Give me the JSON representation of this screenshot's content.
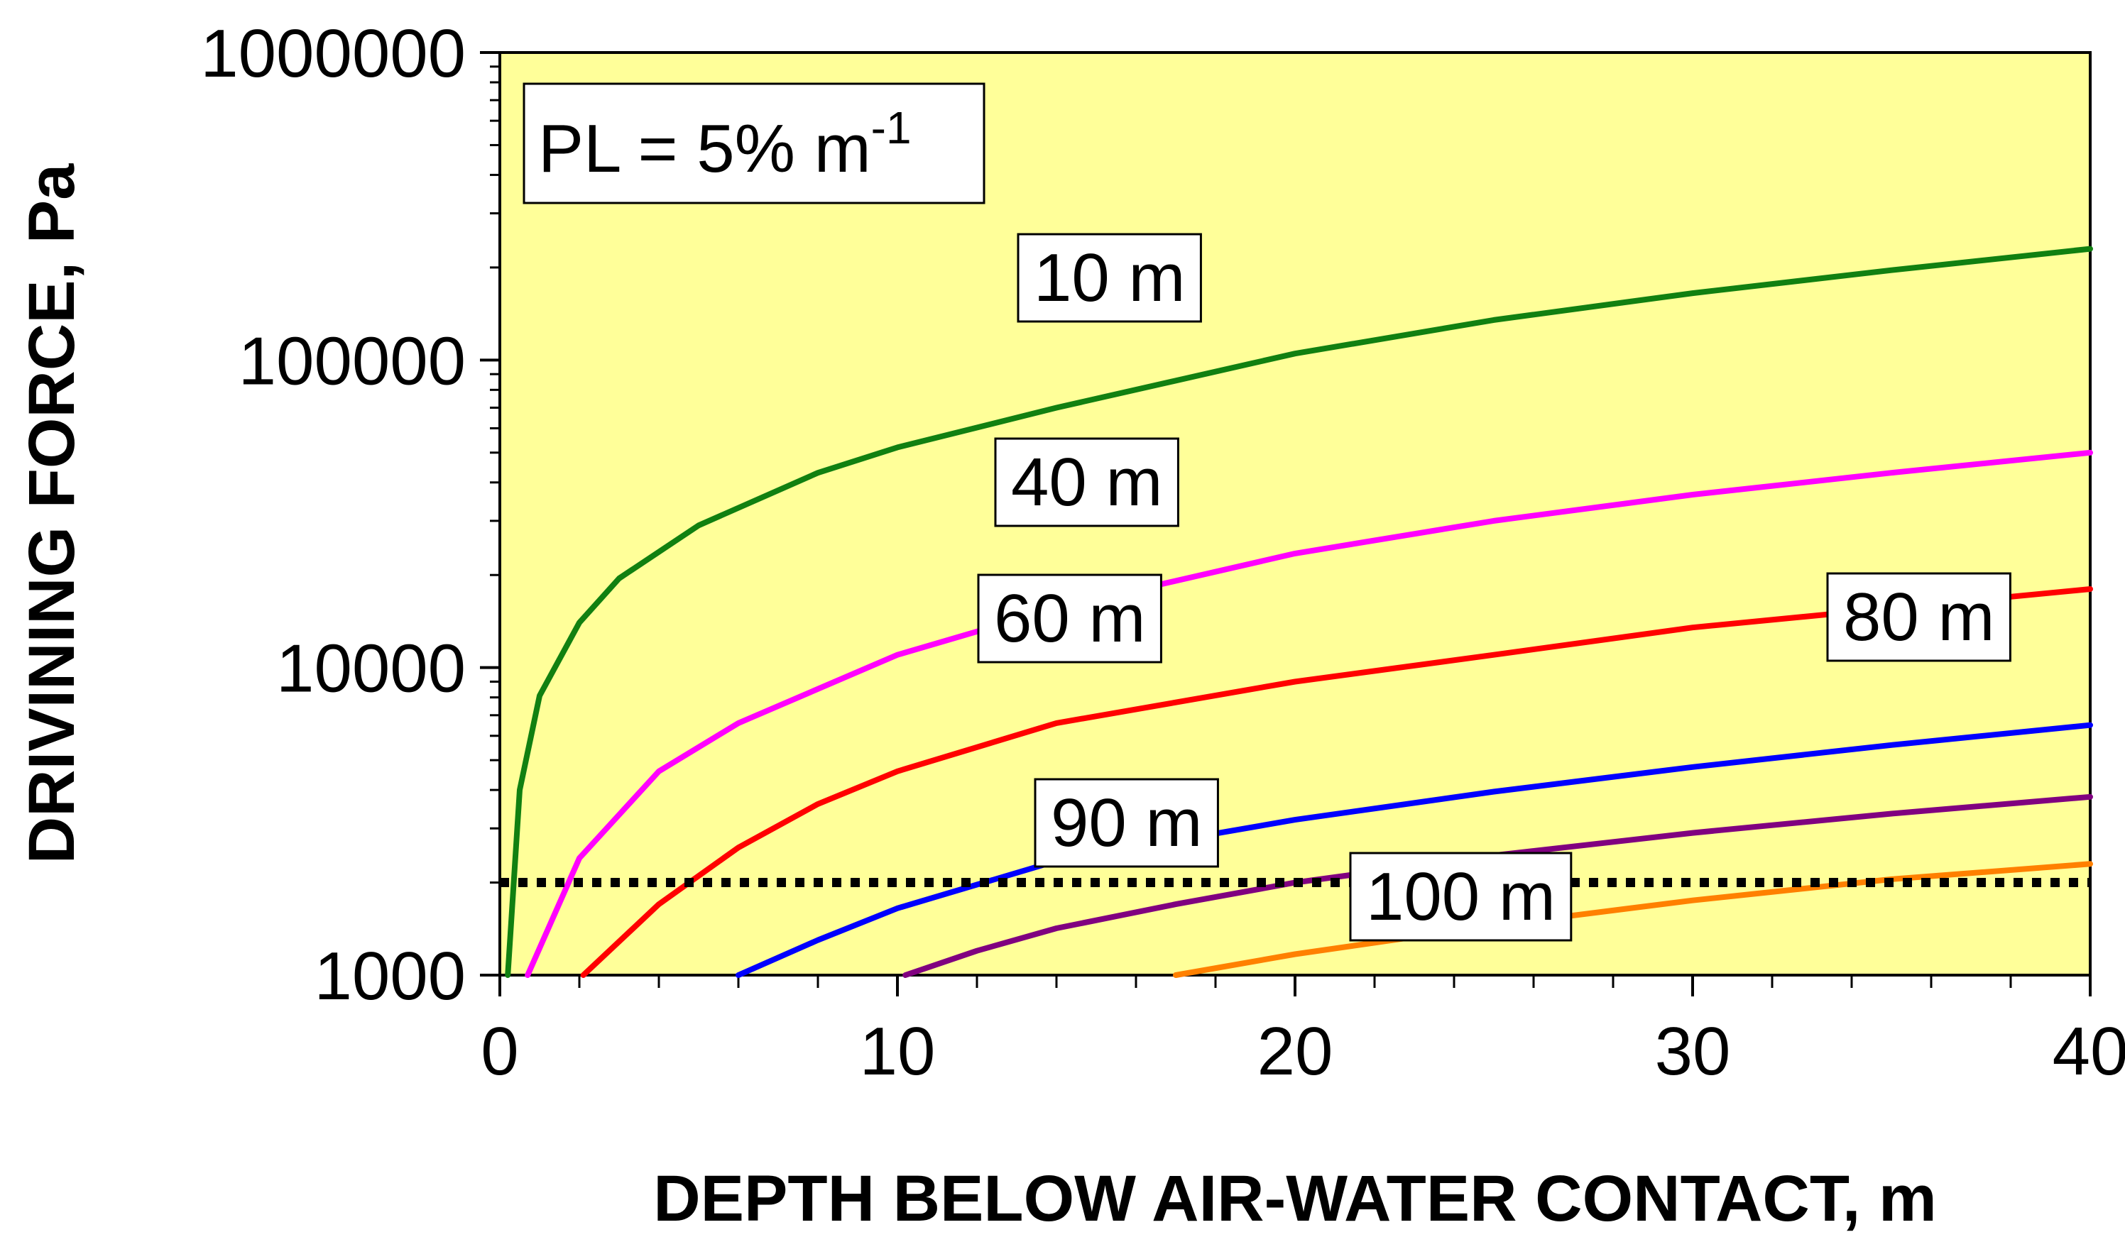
{
  "chart_data": {
    "type": "line",
    "title": "",
    "xlabel": "DEPTH BELOW AIR-WATER CONTACT, m",
    "ylabel": "DRIVINING FORCE, Pa",
    "x_scale": "linear",
    "y_scale": "log",
    "xlim": [
      0,
      40
    ],
    "ylim": [
      1000,
      1000000
    ],
    "x_ticks": [
      "0",
      "10",
      "20",
      "30",
      "40"
    ],
    "y_ticks": [
      "1000",
      "10000",
      "100000",
      "1000000"
    ],
    "grid": false,
    "plot_background": "#FFFF99",
    "annotation": {
      "prefix": "PL = 5% m",
      "superscript": "-1"
    },
    "threshold_line": {
      "name": "threshold",
      "value": 2000,
      "style": "dotted",
      "color": "#000000"
    },
    "series": [
      {
        "name": "10 m",
        "label": "10 m",
        "color": "#118011",
        "x": [
          0.2,
          0.5,
          1,
          2,
          3,
          5,
          8,
          10,
          14,
          20,
          25,
          30,
          35,
          40
        ],
        "values": [
          1000,
          4000,
          8100,
          14000,
          19500,
          29000,
          43000,
          52000,
          70000,
          105000,
          135000,
          165000,
          196000,
          230000
        ]
      },
      {
        "name": "40 m",
        "label": "40 m",
        "color": "#FF00FF",
        "x": [
          0.7,
          2,
          4,
          6,
          10,
          14,
          20,
          25,
          30,
          35,
          40
        ],
        "values": [
          1000,
          2400,
          4600,
          6600,
          11000,
          15600,
          23500,
          30000,
          36500,
          43000,
          50000
        ]
      },
      {
        "name": "60 m",
        "label": "60 m",
        "color": "#FF0000",
        "x": [
          2.1,
          4,
          6,
          8,
          10,
          14,
          20,
          25,
          30,
          35,
          40
        ],
        "values": [
          1000,
          1700,
          2600,
          3600,
          4600,
          6600,
          9000,
          11000,
          13500,
          15600,
          18000
        ]
      },
      {
        "name": "80 m",
        "label": "80 m",
        "color": "#0000FF",
        "x": [
          6,
          8,
          10,
          14,
          20,
          25,
          30,
          35,
          40
        ],
        "values": [
          1000,
          1300,
          1650,
          2350,
          3200,
          3950,
          4750,
          5600,
          6500
        ]
      },
      {
        "name": "90 m",
        "label": "90 m",
        "color": "#800080",
        "x": [
          10.2,
          12,
          14,
          17,
          20,
          25,
          30,
          35,
          40
        ],
        "values": [
          1000,
          1200,
          1420,
          1700,
          2000,
          2450,
          2900,
          3350,
          3800
        ]
      },
      {
        "name": "100 m",
        "label": "100 m",
        "color": "#FF8000",
        "x": [
          17,
          20,
          25,
          30,
          35,
          40
        ],
        "values": [
          1000,
          1170,
          1450,
          1750,
          2050,
          2300
        ]
      }
    ]
  }
}
